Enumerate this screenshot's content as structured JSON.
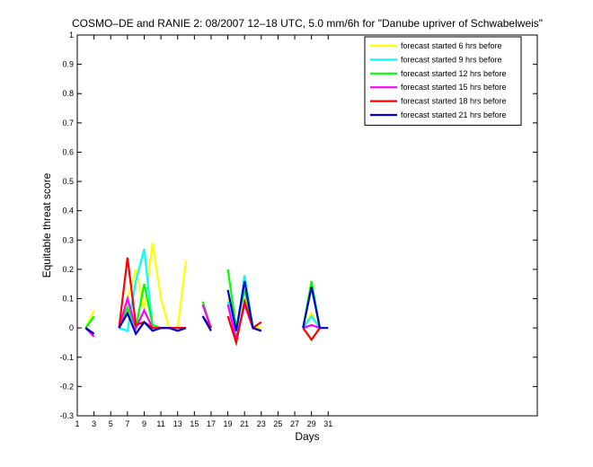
{
  "chart_data": {
    "type": "line",
    "title": "COSMO–DE and RANIE 2: 08/2007 12–18 UTC, 5.0 mm/6h for \"Danube upriver of Schwabelweis\"",
    "xlabel": "Days",
    "ylabel": "Equitable threat score",
    "xlim": [
      1,
      56
    ],
    "ylim": [
      -0.3,
      1
    ],
    "xticks": [
      1,
      3,
      5,
      7,
      9,
      11,
      13,
      15,
      17,
      19,
      21,
      23,
      25,
      27,
      29,
      31
    ],
    "yticks": [
      -0.3,
      -0.2,
      -0.1,
      0,
      0.1,
      0.2,
      0.3,
      0.4,
      0.5,
      0.6,
      0.7,
      0.8,
      0.9,
      1
    ],
    "legend_position": "top-right",
    "grid": false,
    "series": [
      {
        "name": "forecast started 6 hrs before",
        "color": "#ffff00",
        "points": [
          [
            2,
            0
          ],
          [
            3,
            0.06
          ],
          null,
          [
            6,
            0
          ],
          [
            7,
            0.1
          ],
          [
            8,
            0.2
          ],
          [
            9,
            0.06
          ],
          [
            10,
            0.29
          ],
          [
            11,
            0.1
          ],
          [
            12,
            0
          ],
          [
            13,
            0
          ],
          [
            14,
            0.23
          ],
          null,
          [
            16,
            0.09
          ],
          [
            17,
            0
          ],
          null,
          [
            19,
            0.1
          ],
          [
            20,
            0
          ],
          [
            21,
            0.13
          ],
          [
            22,
            0
          ],
          [
            23,
            0
          ],
          null,
          [
            28,
            0
          ],
          [
            29,
            0.05
          ],
          [
            30,
            0
          ]
        ]
      },
      {
        "name": "forecast started 9 hrs before",
        "color": "#00ffff",
        "points": [
          [
            2,
            0
          ],
          [
            3,
            0.04
          ],
          null,
          [
            6,
            0
          ],
          [
            7,
            -0.01
          ],
          [
            8,
            0.16
          ],
          [
            9,
            0.27
          ],
          [
            10,
            0
          ],
          [
            11,
            0
          ],
          [
            12,
            0
          ],
          [
            13,
            0
          ],
          [
            14,
            0
          ],
          null,
          [
            16,
            0.08
          ],
          [
            17,
            0
          ],
          null,
          [
            19,
            0.09
          ],
          [
            20,
            -0.03
          ],
          [
            21,
            0.18
          ],
          [
            22,
            0
          ],
          [
            23,
            -0.01
          ],
          null,
          [
            28,
            0
          ],
          [
            29,
            0.04
          ],
          [
            30,
            0
          ]
        ]
      },
      {
        "name": "forecast started 12 hrs before",
        "color": "#00ff00",
        "points": [
          [
            2,
            0
          ],
          [
            3,
            0.04
          ],
          null,
          [
            6,
            0
          ],
          [
            7,
            0.07
          ],
          [
            8,
            0
          ],
          [
            9,
            0.15
          ],
          [
            10,
            0.01
          ],
          [
            11,
            0
          ],
          [
            12,
            0
          ],
          [
            13,
            0
          ],
          [
            14,
            0
          ],
          null,
          [
            16,
            0.09
          ],
          [
            17,
            0
          ],
          null,
          [
            19,
            0.2
          ],
          [
            20,
            0
          ],
          [
            21,
            0.13
          ],
          [
            22,
            0
          ],
          [
            23,
            -0.01
          ],
          null,
          [
            28,
            0
          ],
          [
            29,
            0.16
          ],
          [
            30,
            0
          ]
        ]
      },
      {
        "name": "forecast started 15 hrs before",
        "color": "#ff00ff",
        "points": [
          [
            2,
            0
          ],
          [
            3,
            -0.03
          ],
          null,
          [
            6,
            0
          ],
          [
            7,
            0.1
          ],
          [
            8,
            0
          ],
          [
            9,
            0.06
          ],
          [
            10,
            0
          ],
          [
            11,
            0
          ],
          [
            12,
            0
          ],
          [
            13,
            0
          ],
          [
            14,
            0
          ],
          null,
          [
            16,
            0.08
          ],
          [
            17,
            0
          ],
          null,
          [
            19,
            0.08
          ],
          [
            20,
            -0.04
          ],
          [
            21,
            0.08
          ],
          [
            22,
            0
          ],
          [
            23,
            -0.01
          ],
          null,
          [
            28,
            0
          ],
          [
            29,
            0.01
          ],
          [
            30,
            0
          ]
        ]
      },
      {
        "name": "forecast started 18 hrs before",
        "color": "#ff0000",
        "points": [
          [
            2,
            0
          ],
          [
            3,
            -0.02
          ],
          null,
          [
            6,
            0
          ],
          [
            7,
            0.24
          ],
          [
            8,
            0.01
          ],
          [
            9,
            0.02
          ],
          [
            10,
            0
          ],
          [
            11,
            0
          ],
          [
            12,
            0
          ],
          [
            13,
            0
          ],
          [
            14,
            0
          ],
          null,
          [
            16,
            0.04
          ],
          [
            17,
            0
          ],
          null,
          [
            19,
            0.04
          ],
          [
            20,
            -0.05
          ],
          [
            21,
            0.09
          ],
          [
            22,
            0
          ],
          [
            23,
            0.02
          ],
          null,
          [
            28,
            0
          ],
          [
            29,
            -0.04
          ],
          [
            30,
            0
          ]
        ]
      },
      {
        "name": "forecast started 21 hrs before",
        "color": "#0000cc",
        "points": [
          [
            2,
            0
          ],
          [
            3,
            -0.02
          ],
          null,
          [
            6,
            0
          ],
          [
            7,
            0.05
          ],
          [
            8,
            -0.02
          ],
          [
            9,
            0.02
          ],
          [
            10,
            -0.01
          ],
          [
            11,
            0
          ],
          [
            12,
            0
          ],
          [
            13,
            -0.01
          ],
          [
            14,
            0
          ],
          null,
          [
            16,
            0.04
          ],
          [
            17,
            -0.01
          ],
          null,
          [
            19,
            0.13
          ],
          [
            20,
            -0.01
          ],
          [
            21,
            0.16
          ],
          [
            22,
            0
          ],
          [
            23,
            -0.01
          ],
          null,
          [
            28,
            0
          ],
          [
            29,
            0.14
          ],
          [
            30,
            0
          ],
          [
            31,
            0
          ]
        ]
      }
    ]
  }
}
